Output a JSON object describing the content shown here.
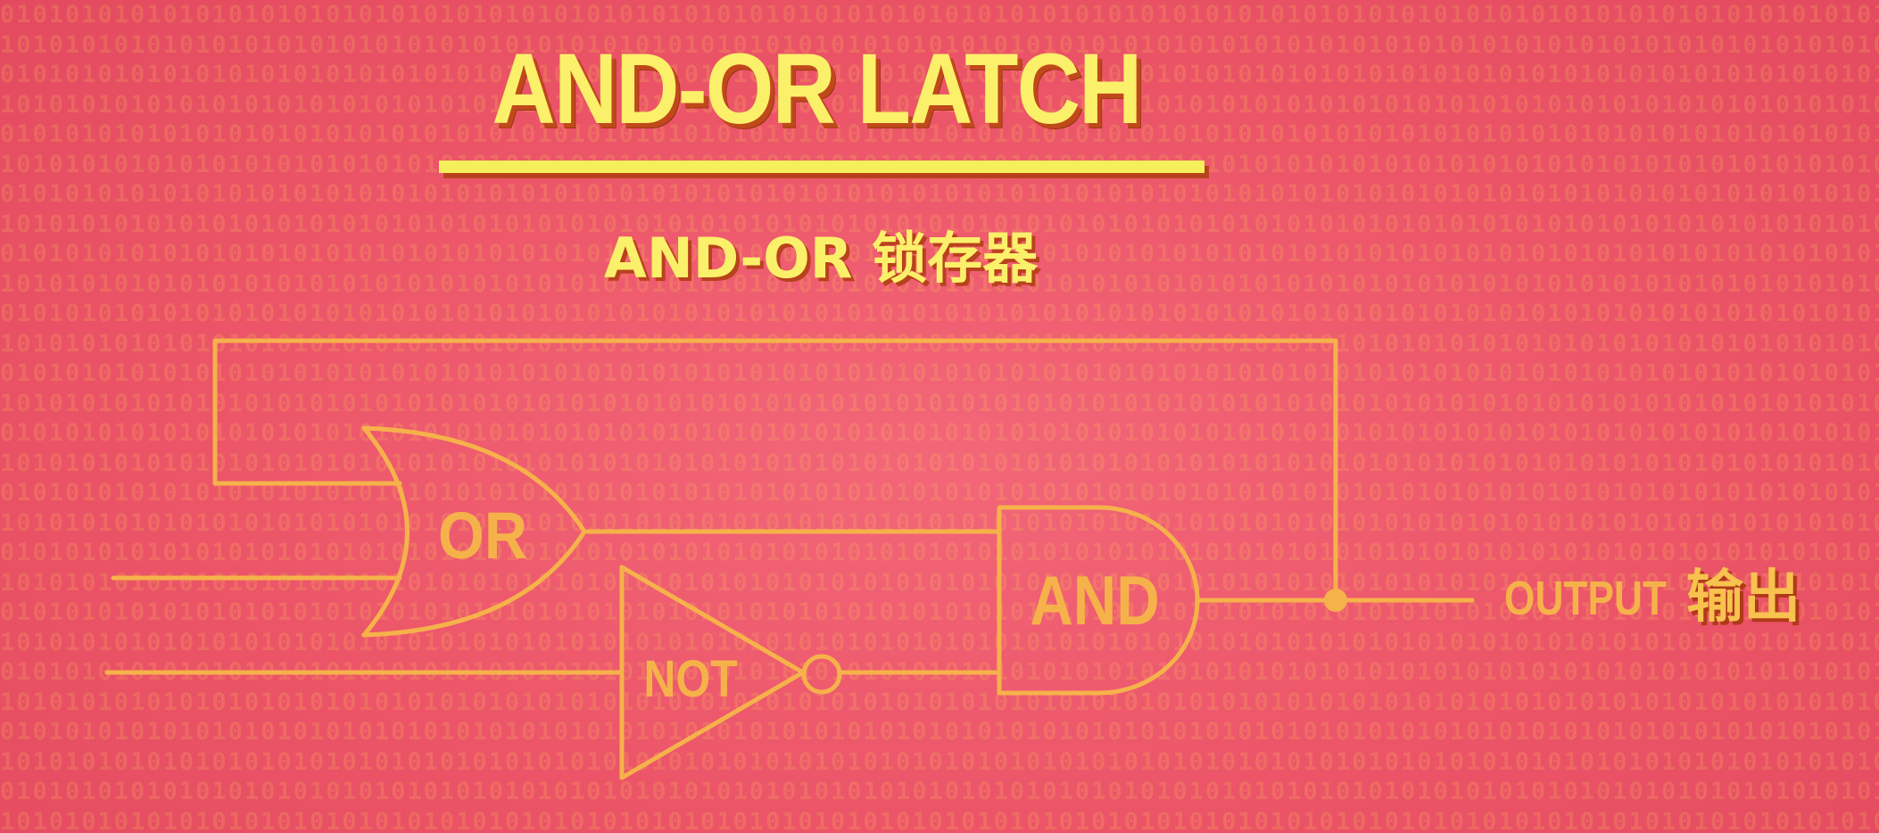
{
  "diagram": {
    "title": "AND-OR LATCH",
    "subtitle": "AND-OR 锁存器",
    "gates": {
      "or": "OR",
      "not": "NOT",
      "and": "AND"
    },
    "output": {
      "label": "OUTPUT",
      "label_cn": "输出"
    }
  },
  "colors": {
    "background": "#ee5a6c",
    "title_yellow": "#fbf06a",
    "title_shadow": "#c0491a",
    "circuit_orange": "#f6b24a",
    "binary_texture": "rgba(255,200,90,0.20)"
  }
}
